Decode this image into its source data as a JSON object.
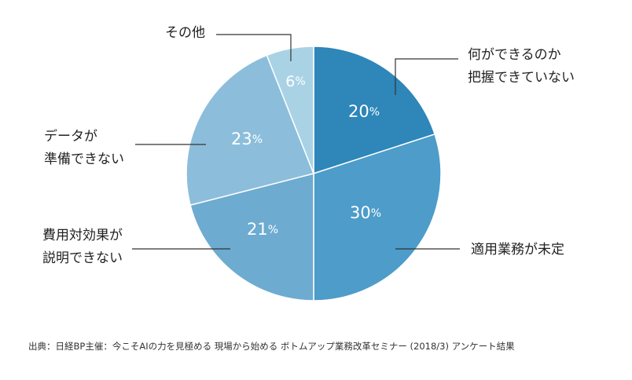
{
  "chart_data": {
    "type": "pie",
    "start_angle_deg": 0,
    "direction": "clockwise",
    "slices": [
      {
        "label_lines": [
          "何ができるのか",
          "把握できていない"
        ],
        "value": 20,
        "display": "20",
        "unit": "%",
        "color": "#2e86b9"
      },
      {
        "label_lines": [
          "適用業務が未定"
        ],
        "value": 30,
        "display": "30",
        "unit": "%",
        "color": "#4d9cc9"
      },
      {
        "label_lines": [
          "費用対効果が",
          "説明できない"
        ],
        "value": 21,
        "display": "21",
        "unit": "%",
        "color": "#6eabd0"
      },
      {
        "label_lines": [
          "データが",
          "準備できない"
        ],
        "value": 23,
        "display": "23",
        "unit": "%",
        "color": "#8cbedb"
      },
      {
        "label_lines": [
          "その他"
        ],
        "value": 6,
        "display": "6",
        "unit": "%",
        "color": "#a9d3e5"
      }
    ]
  },
  "source_note": "出典：日経BP主催：今こそAIの力を見極める 現場から始める ボトムアップ業務改革セミナー (2018/3) アンケート結果"
}
